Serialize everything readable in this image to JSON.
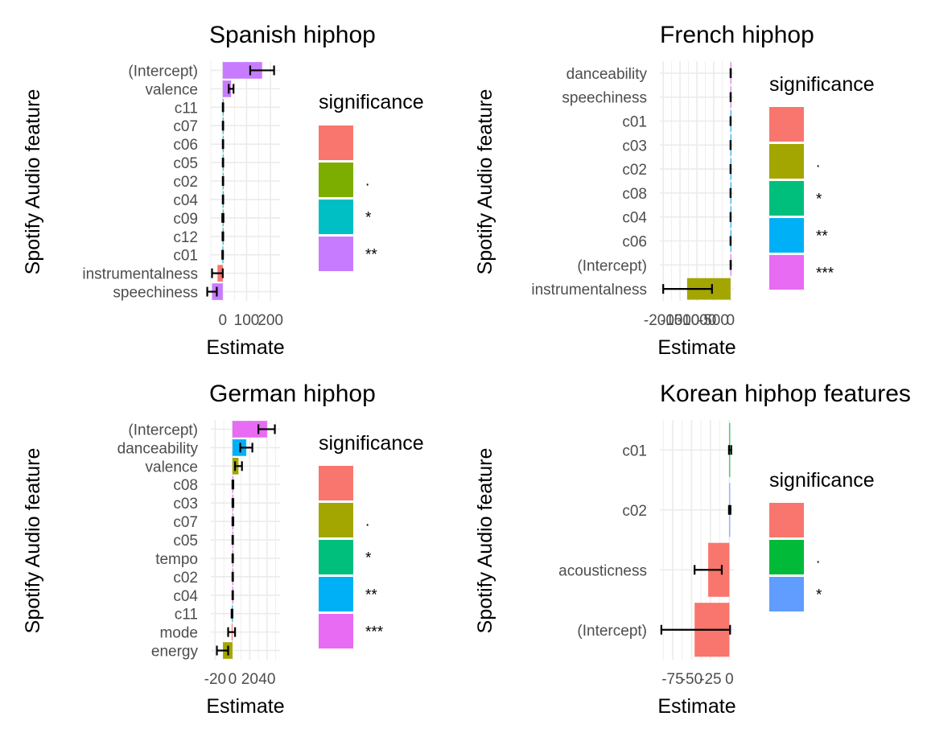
{
  "chart_data": [
    {
      "type": "bar",
      "orientation": "horizontal",
      "title": "Spanish hiphop",
      "xlabel": "Estimate",
      "ylabel": "Spotify Audio feature",
      "xlim": [
        -50,
        240
      ],
      "xticks": [
        0,
        100,
        200
      ],
      "xtick_labels": [
        "0",
        "100",
        "200"
      ],
      "grid": true,
      "legend": {
        "title": "significance",
        "position": "right",
        "items": [
          {
            "label": "",
            "color": "#F8766D"
          },
          {
            "label": ".",
            "color": "#7CAE00"
          },
          {
            "label": "*",
            "color": "#00BFC4"
          },
          {
            "label": "**",
            "color": "#C77CFF"
          }
        ]
      },
      "categories": [
        "(Intercept)",
        "valence",
        "c11",
        "c07",
        "c06",
        "c05",
        "c02",
        "c04",
        "c09",
        "c12",
        "c01",
        "instrumentalness",
        "speechiness"
      ],
      "values": [
        165,
        35,
        1,
        1,
        1,
        1,
        1,
        1,
        1,
        1,
        -1,
        -22,
        -45
      ],
      "error_low": [
        115,
        25,
        0,
        0,
        0,
        0,
        0,
        0,
        -2,
        -1,
        -2,
        -45,
        -65
      ],
      "error_high": [
        215,
        45,
        2,
        2,
        2,
        2,
        2,
        2,
        3,
        2,
        1,
        0,
        -25
      ],
      "significance": [
        "**",
        "**",
        "*",
        "*",
        "*",
        "*",
        "*",
        "*",
        "*",
        "*",
        "*",
        "",
        "**"
      ]
    },
    {
      "type": "bar",
      "orientation": "horizontal",
      "title": "French hiphop",
      "xlabel": "Estimate",
      "ylabel": "Spotify Audio feature",
      "xlim": [
        -2100,
        100
      ],
      "xticks": [
        -2000,
        -1500,
        -1000,
        -500,
        0
      ],
      "xtick_labels": [
        "-2000",
        "-1500",
        "-1000",
        "-500",
        "0"
      ],
      "grid": true,
      "legend": {
        "title": "significance",
        "position": "right",
        "items": [
          {
            "label": "",
            "color": "#F8766D"
          },
          {
            "label": ".",
            "color": "#A3A500"
          },
          {
            "label": "*",
            "color": "#00BF7D"
          },
          {
            "label": "**",
            "color": "#00B0F6"
          },
          {
            "label": "***",
            "color": "#E76BF3"
          }
        ]
      },
      "categories": [
        "danceability",
        "speechiness",
        "c01",
        "c03",
        "c02",
        "c08",
        "c04",
        "c06",
        "(Intercept)",
        "instrumentalness"
      ],
      "values": [
        5,
        3,
        2,
        2,
        2,
        2,
        2,
        2,
        5,
        -1290
      ],
      "error_low": [
        0,
        0,
        0,
        0,
        0,
        0,
        0,
        0,
        0,
        -2000
      ],
      "error_high": [
        10,
        8,
        5,
        5,
        5,
        5,
        5,
        5,
        10,
        -550
      ],
      "significance": [
        "***",
        "***",
        "**",
        "**",
        "**",
        "**",
        "**",
        "**",
        "***",
        "."
      ]
    },
    {
      "type": "bar",
      "orientation": "horizontal",
      "title": "German hiphop",
      "xlabel": "Estimate",
      "ylabel": "Spotify Audio feature",
      "xlim": [
        -25,
        55
      ],
      "xticks": [
        -20,
        0,
        20,
        40
      ],
      "xtick_labels": [
        "-20",
        "0",
        "20",
        "40"
      ],
      "grid": true,
      "legend": {
        "title": "significance",
        "position": "right",
        "items": [
          {
            "label": "",
            "color": "#F8766D"
          },
          {
            "label": ".",
            "color": "#A3A500"
          },
          {
            "label": "*",
            "color": "#00BF7D"
          },
          {
            "label": "**",
            "color": "#00B0F6"
          },
          {
            "label": "***",
            "color": "#E76BF3"
          }
        ]
      },
      "categories": [
        "(Intercept)",
        "danceability",
        "valence",
        "c08",
        "c03",
        "c07",
        "c05",
        "tempo",
        "c02",
        "c04",
        "c11",
        "mode",
        "energy"
      ],
      "values": [
        40,
        16,
        7,
        0.5,
        0.5,
        0.5,
        0.3,
        0.3,
        0.3,
        0.3,
        -0.5,
        -1,
        -11
      ],
      "error_low": [
        30,
        9,
        3,
        0,
        0,
        0,
        0,
        0,
        0,
        0,
        -1,
        -5,
        -18
      ],
      "error_high": [
        49,
        23,
        11,
        1,
        1,
        1,
        0.6,
        0.6,
        0.6,
        0.6,
        0,
        3,
        -5
      ],
      "significance": [
        "***",
        "**",
        ".",
        "***",
        "***",
        "***",
        "***",
        "***",
        "***",
        "***",
        "**",
        "",
        "."
      ]
    },
    {
      "type": "bar",
      "orientation": "horizontal",
      "title": "Korean hiphop features",
      "xlabel": "Estimate",
      "ylabel": "Spotify Audio feature",
      "xlim": [
        -92,
        6
      ],
      "xticks": [
        -75,
        -50,
        -25,
        0
      ],
      "xtick_labels": [
        "-75",
        "-50",
        "-25",
        "0"
      ],
      "grid": true,
      "legend": {
        "title": "significance",
        "position": "right",
        "items": [
          {
            "label": "",
            "color": "#F8766D"
          },
          {
            "label": ".",
            "color": "#00BA38"
          },
          {
            "label": "*",
            "color": "#619CFF"
          }
        ]
      },
      "categories": [
        "c01",
        "c02",
        "acousticness",
        "(Intercept)"
      ],
      "values": [
        1,
        0.5,
        -28,
        -46
      ],
      "error_low": [
        -0.5,
        -0.5,
        -46,
        -90
      ],
      "error_high": [
        2.5,
        1.5,
        -10,
        1
      ],
      "significance": [
        ".",
        "*",
        "",
        ""
      ]
    }
  ]
}
